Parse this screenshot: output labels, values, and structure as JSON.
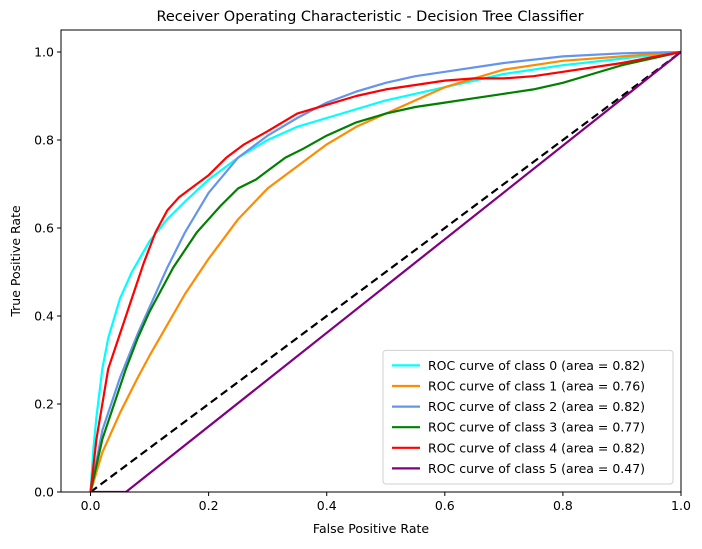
{
  "chart_data": {
    "type": "line",
    "title": "Receiver Operating Characteristic - Decision Tree Classifier",
    "xlabel": "False Positive Rate",
    "ylabel": "True Positive Rate",
    "xlim": [
      -0.05,
      1.0
    ],
    "ylim": [
      0.0,
      1.05
    ],
    "x_ticks": [
      0.0,
      0.2,
      0.4,
      0.6,
      0.8,
      1.0
    ],
    "x_tick_labels": [
      "0.0",
      "0.2",
      "0.4",
      "0.6",
      "0.8",
      "1.0"
    ],
    "y_ticks": [
      0.0,
      0.2,
      0.4,
      0.6,
      0.8,
      1.0
    ],
    "y_tick_labels": [
      "0.0",
      "0.2",
      "0.4",
      "0.6",
      "0.8",
      "1.0"
    ],
    "grid": false,
    "legend_position": "lower-right",
    "series": [
      {
        "name": "ROC curve of class 0 (area = 0.82)",
        "color": "#00ffff",
        "x": [
          0,
          0.005,
          0.01,
          0.02,
          0.03,
          0.05,
          0.07,
          0.1,
          0.13,
          0.16,
          0.2,
          0.25,
          0.3,
          0.35,
          0.4,
          0.5,
          0.6,
          0.7,
          0.8,
          0.9,
          1.0
        ],
        "y": [
          0,
          0.1,
          0.17,
          0.28,
          0.35,
          0.44,
          0.5,
          0.57,
          0.62,
          0.66,
          0.71,
          0.76,
          0.8,
          0.83,
          0.85,
          0.89,
          0.92,
          0.95,
          0.97,
          0.985,
          1.0
        ]
      },
      {
        "name": "ROC curve of class 1 (area = 0.76)",
        "color": "#ff8c00",
        "x": [
          0,
          0.02,
          0.05,
          0.08,
          0.1,
          0.13,
          0.16,
          0.2,
          0.25,
          0.3,
          0.35,
          0.4,
          0.45,
          0.5,
          0.55,
          0.6,
          0.7,
          0.8,
          0.9,
          1.0
        ],
        "y": [
          0,
          0.09,
          0.18,
          0.26,
          0.31,
          0.38,
          0.45,
          0.53,
          0.62,
          0.69,
          0.74,
          0.79,
          0.83,
          0.86,
          0.89,
          0.92,
          0.96,
          0.98,
          0.99,
          1.0
        ]
      },
      {
        "name": "ROC curve of class 2 (area = 0.82)",
        "color": "#6495ed",
        "x": [
          0,
          0.02,
          0.05,
          0.08,
          0.1,
          0.13,
          0.16,
          0.2,
          0.25,
          0.3,
          0.35,
          0.4,
          0.45,
          0.5,
          0.55,
          0.6,
          0.7,
          0.8,
          0.9,
          1.0
        ],
        "y": [
          0,
          0.14,
          0.26,
          0.36,
          0.42,
          0.51,
          0.59,
          0.68,
          0.76,
          0.81,
          0.85,
          0.885,
          0.91,
          0.93,
          0.945,
          0.955,
          0.975,
          0.99,
          0.997,
          1.0
        ]
      },
      {
        "name": "ROC curve of class 3 (area = 0.77)",
        "color": "#008000",
        "x": [
          0,
          0.02,
          0.04,
          0.06,
          0.08,
          0.1,
          0.12,
          0.14,
          0.16,
          0.18,
          0.2,
          0.22,
          0.25,
          0.28,
          0.3,
          0.33,
          0.36,
          0.4,
          0.45,
          0.5,
          0.55,
          0.6,
          0.65,
          0.7,
          0.75,
          0.8,
          0.85,
          0.9,
          0.95,
          1.0
        ],
        "y": [
          0,
          0.12,
          0.2,
          0.28,
          0.35,
          0.41,
          0.46,
          0.51,
          0.55,
          0.59,
          0.62,
          0.65,
          0.69,
          0.71,
          0.73,
          0.76,
          0.78,
          0.81,
          0.84,
          0.86,
          0.875,
          0.885,
          0.895,
          0.905,
          0.915,
          0.93,
          0.95,
          0.97,
          0.985,
          1.0
        ]
      },
      {
        "name": "ROC curve of class 4 (area = 0.82)",
        "color": "#ff0000",
        "x": [
          0,
          0.01,
          0.02,
          0.03,
          0.04,
          0.05,
          0.07,
          0.09,
          0.11,
          0.13,
          0.15,
          0.17,
          0.2,
          0.23,
          0.26,
          0.3,
          0.35,
          0.4,
          0.45,
          0.5,
          0.55,
          0.6,
          0.65,
          0.7,
          0.75,
          0.8,
          0.85,
          0.9,
          0.95,
          1.0
        ],
        "y": [
          0,
          0.12,
          0.2,
          0.28,
          0.32,
          0.36,
          0.44,
          0.52,
          0.59,
          0.64,
          0.67,
          0.69,
          0.72,
          0.76,
          0.79,
          0.82,
          0.86,
          0.88,
          0.9,
          0.915,
          0.925,
          0.935,
          0.94,
          0.94,
          0.945,
          0.955,
          0.965,
          0.975,
          0.988,
          1.0
        ]
      },
      {
        "name": "ROC curve of class 5 (area = 0.47)",
        "color": "#800080",
        "x": [
          0,
          0.06,
          1.0
        ],
        "y": [
          0,
          0,
          1.0
        ]
      }
    ],
    "reference_line": {
      "color": "#000000",
      "dash": "dashed",
      "x": [
        0,
        1.0
      ],
      "y": [
        0,
        1.0
      ]
    }
  }
}
